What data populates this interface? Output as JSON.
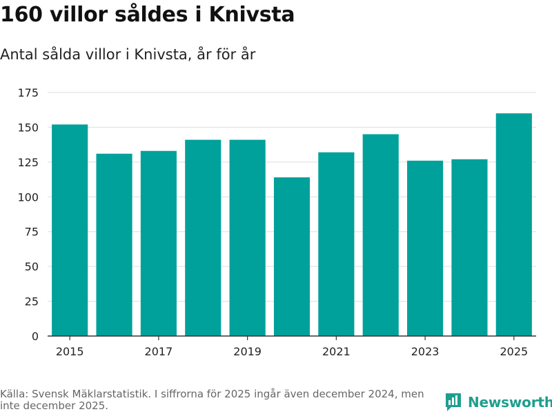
{
  "header": {
    "title": "160 villor såldes i Knivsta",
    "subtitle": "Antal sålda villor i Knivsta, år för år"
  },
  "footer": {
    "source": "Källa: Svensk Mäklarstatistik. I siffrorna för 2025 ingår även december 2024, men inte december 2025.",
    "brand": "Newsworthy",
    "brand_icon": "bar-chart-logo-icon"
  },
  "colors": {
    "bar": "#00a19a",
    "brand": "#1f9e8f",
    "grid": "#dddddd",
    "axis": "#333333"
  },
  "chart_data": {
    "type": "bar",
    "title": "160 villor såldes i Knivsta",
    "subtitle": "Antal sålda villor i Knivsta, år för år",
    "categories": [
      "2015",
      "2016",
      "2017",
      "2018",
      "2019",
      "2020",
      "2021",
      "2022",
      "2023",
      "2024",
      "2025"
    ],
    "values": [
      152,
      131,
      133,
      141,
      141,
      114,
      132,
      145,
      126,
      127,
      160
    ],
    "xtick_labels": [
      "2015",
      "2017",
      "2019",
      "2021",
      "2023",
      "2025"
    ],
    "yticks": [
      0,
      25,
      50,
      75,
      100,
      125,
      150,
      175
    ],
    "ylim": [
      0,
      175
    ],
    "xlabel": "",
    "ylabel": "",
    "grid": true,
    "legend": "none"
  }
}
